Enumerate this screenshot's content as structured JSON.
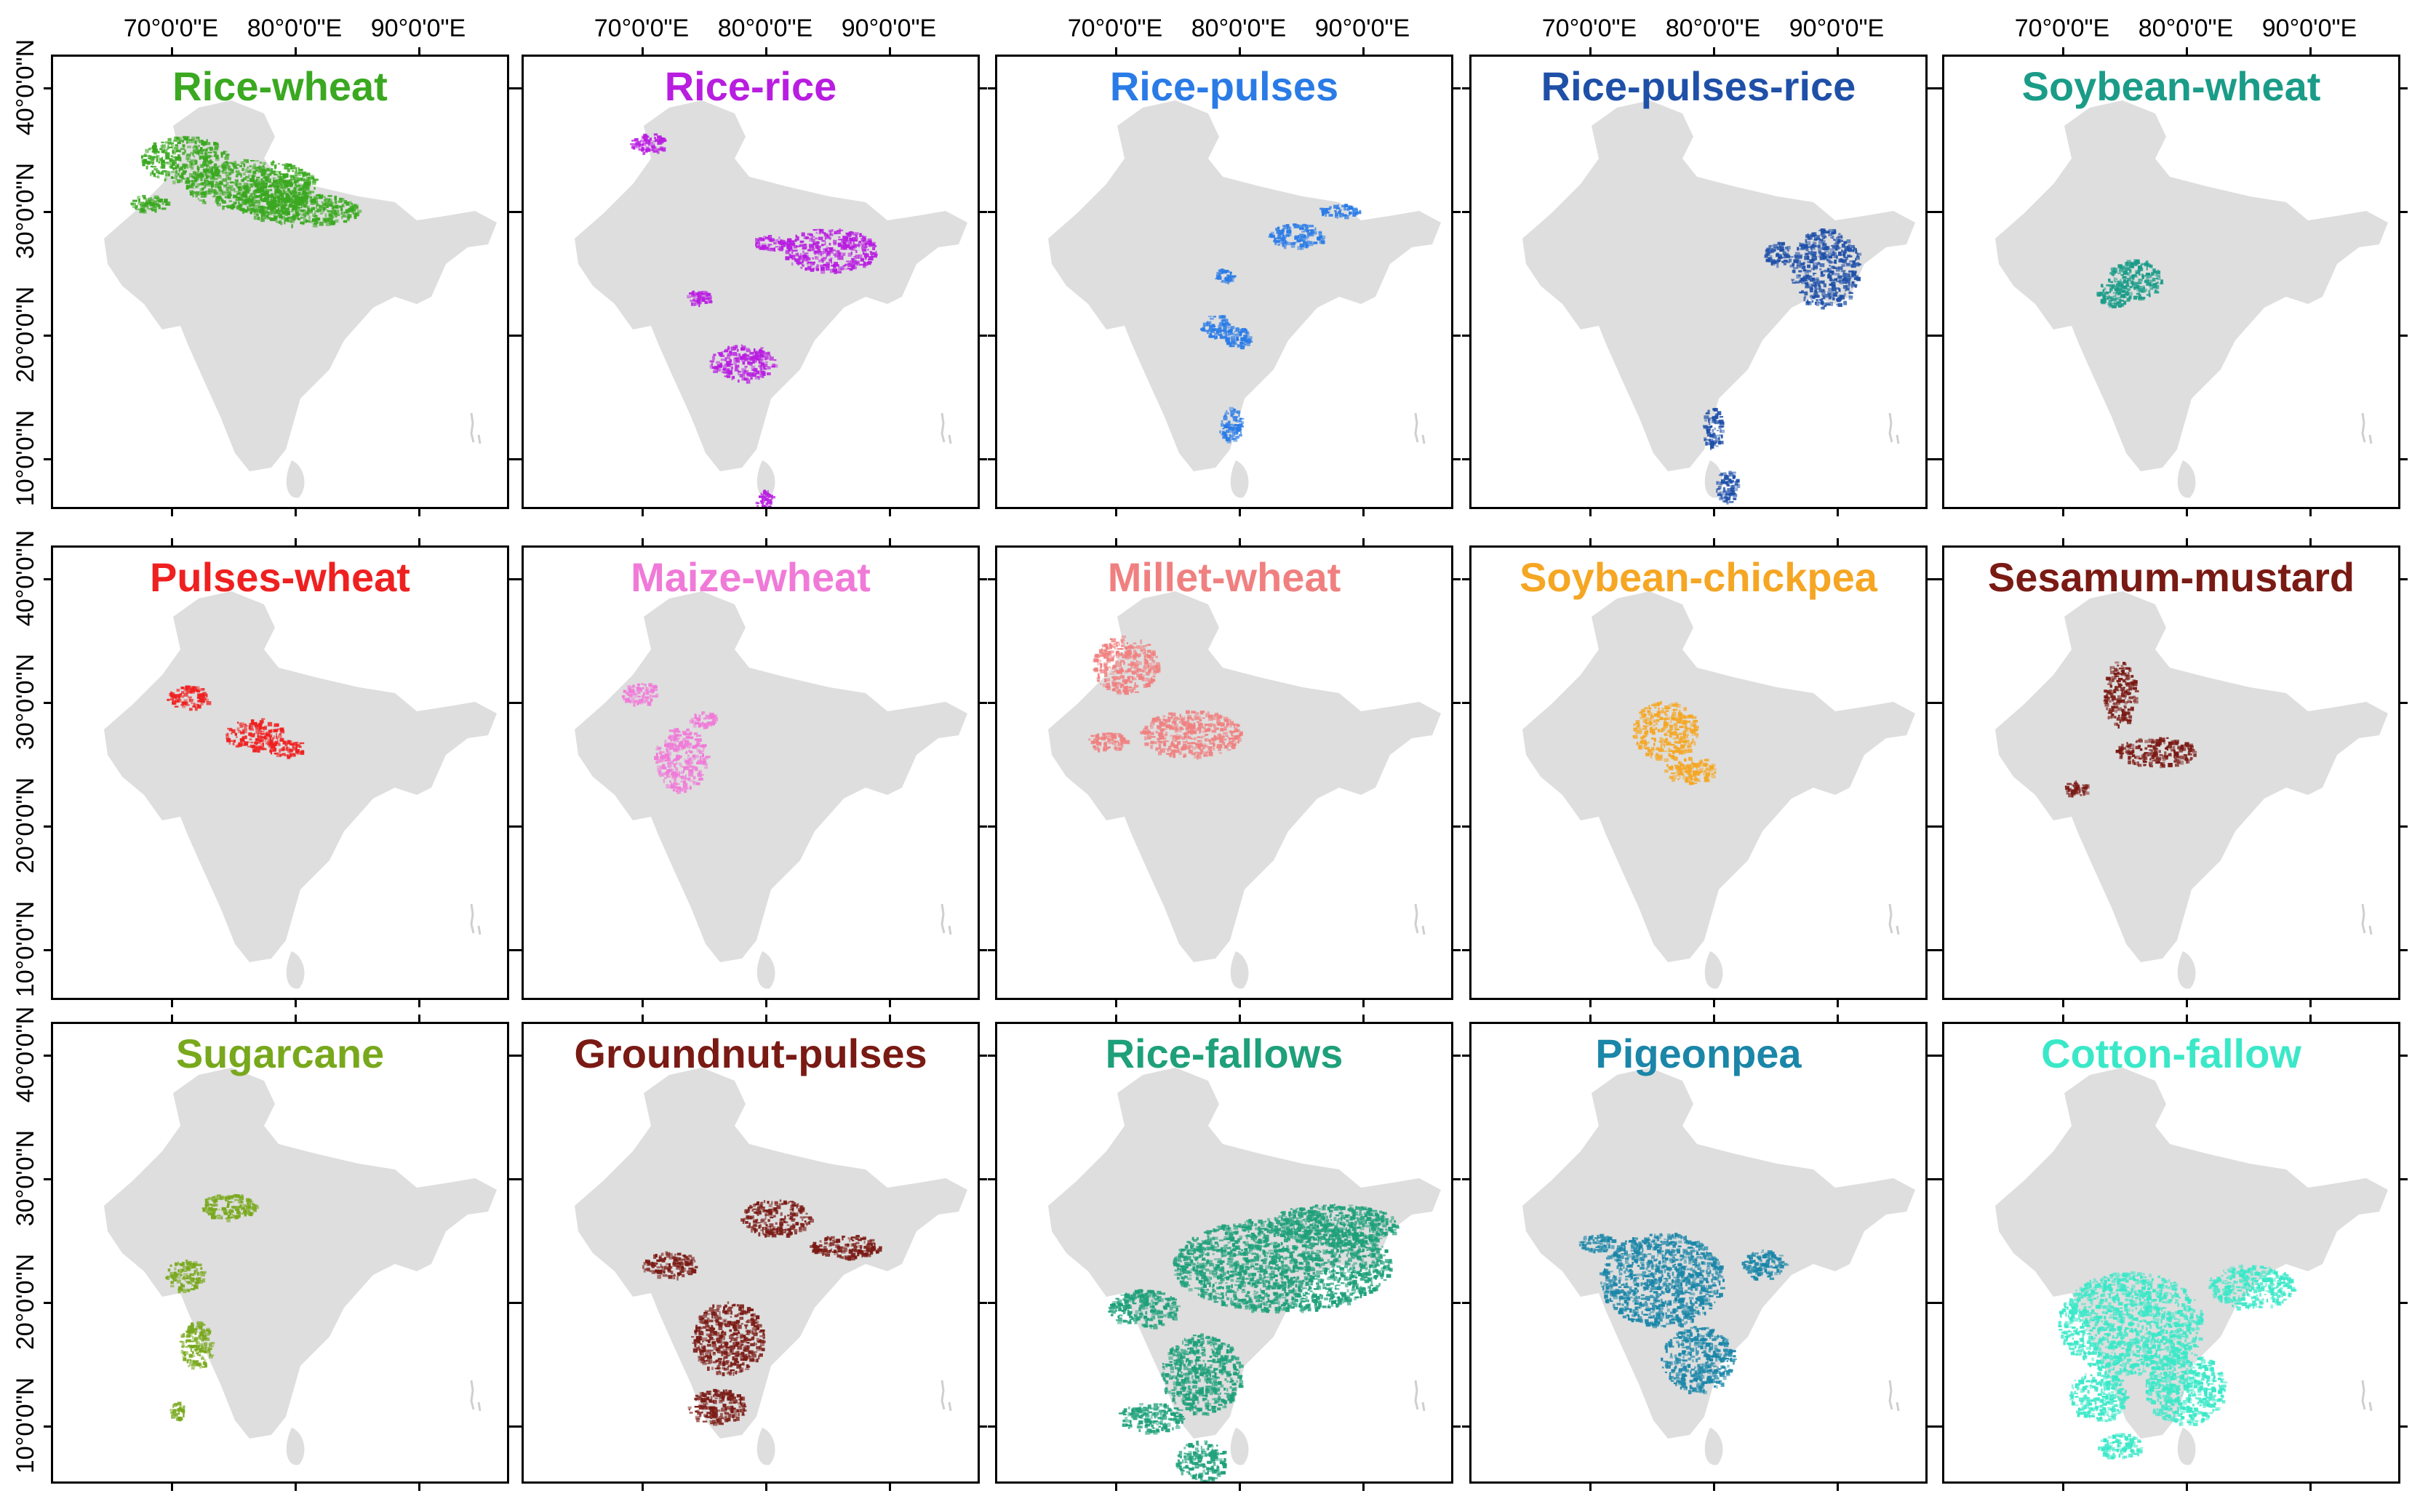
{
  "figure": {
    "lon_labels": [
      "70°0'0\"E",
      "80°0'0\"E",
      "90°0'0\"E"
    ],
    "lat_labels": [
      "40°0'0\"N",
      "30°0'0\"N",
      "20°0'0\"N",
      "10°0'0\"N"
    ],
    "base_color": "#dedede"
  },
  "panels": [
    {
      "title": "Rice-wheat",
      "color": "#3aa820"
    },
    {
      "title": "Rice-rice",
      "color": "#b81de0"
    },
    {
      "title": "Rice-pulses",
      "color": "#2a7be6"
    },
    {
      "title": "Rice-pulses-rice",
      "color": "#1f50a8"
    },
    {
      "title": "Soybean-wheat",
      "color": "#1a9c88"
    },
    {
      "title": "Pulses-wheat",
      "color": "#ef2020"
    },
    {
      "title": "Maize-wheat",
      "color": "#f07ad8"
    },
    {
      "title": "Millet-wheat",
      "color": "#f08080"
    },
    {
      "title": "Soybean-chickpea",
      "color": "#f5a623"
    },
    {
      "title": "Sesamum-mustard",
      "color": "#7a1a14"
    },
    {
      "title": "Sugarcane",
      "color": "#78a81c"
    },
    {
      "title": "Groundnut-pulses",
      "color": "#7a1a14"
    },
    {
      "title": "Rice-fallows",
      "color": "#1ea07a"
    },
    {
      "title": "Pigeonpea",
      "color": "#1a86a8"
    },
    {
      "title": "Cotton-fallow",
      "color": "#3ae8c8"
    }
  ]
}
